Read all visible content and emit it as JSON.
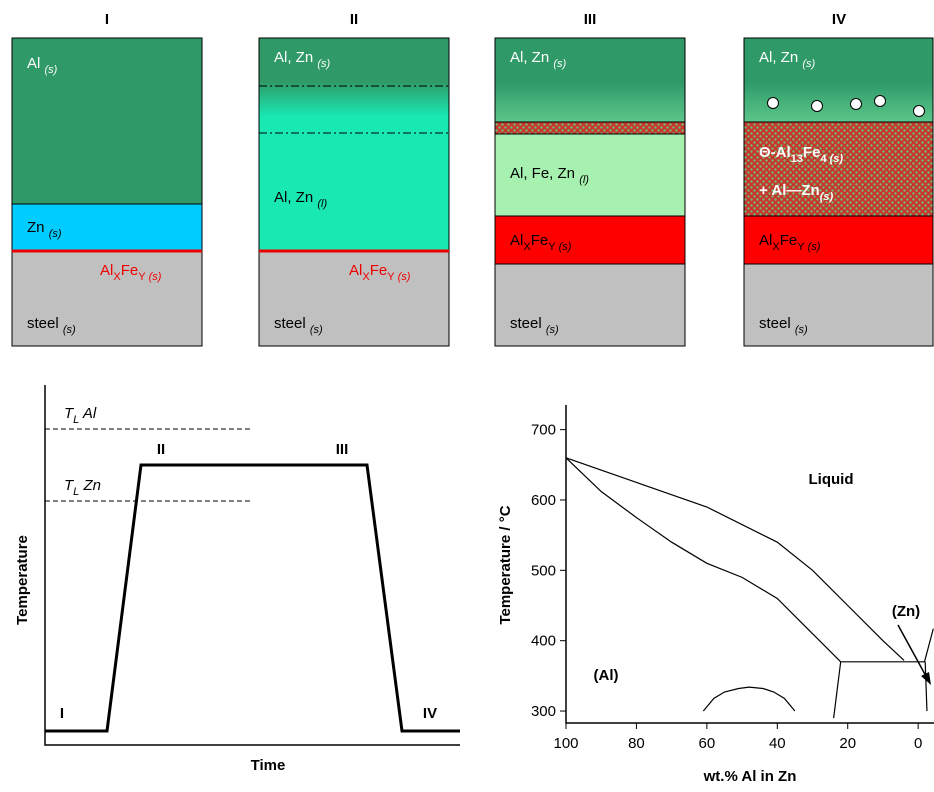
{
  "panels": [
    {
      "title": "I",
      "labels": [
        [
          {
            "text": "Al "
          },
          {
            "text": "(s)",
            "sub": true,
            "italic": true
          }
        ],
        [
          {
            "text": "Zn "
          },
          {
            "text": "(s)",
            "sub": true,
            "italic": true
          }
        ],
        [
          {
            "text": "Al"
          },
          {
            "text": "X",
            "sub": true
          },
          {
            "text": "Fe"
          },
          {
            "text": "Y",
            "sub": true
          },
          {
            "text": " (s)",
            "sub": true,
            "italic": true
          }
        ],
        [
          {
            "text": "steel "
          },
          {
            "text": "(s)",
            "sub": true,
            "italic": true
          }
        ]
      ]
    },
    {
      "title": "II",
      "labels": [
        [
          {
            "text": "Al, Zn "
          },
          {
            "text": "(s)",
            "sub": true,
            "italic": true
          }
        ],
        [
          {
            "text": "Al, Zn "
          },
          {
            "text": "(l)",
            "sub": true,
            "italic": true
          }
        ],
        [
          {
            "text": "Al"
          },
          {
            "text": "X",
            "sub": true
          },
          {
            "text": "Fe"
          },
          {
            "text": "Y",
            "sub": true
          },
          {
            "text": " (s)",
            "sub": true,
            "italic": true
          }
        ],
        [
          {
            "text": "steel "
          },
          {
            "text": "(s)",
            "sub": true,
            "italic": true
          }
        ]
      ]
    },
    {
      "title": "III",
      "labels": [
        [
          {
            "text": "Al, Zn "
          },
          {
            "text": "(s)",
            "sub": true,
            "italic": true
          }
        ],
        [
          {
            "text": "Al, Fe, Zn "
          },
          {
            "text": "(l)",
            "sub": true,
            "italic": true
          }
        ],
        [
          {
            "text": "Al"
          },
          {
            "text": "X",
            "sub": true
          },
          {
            "text": "Fe"
          },
          {
            "text": "Y",
            "sub": true
          },
          {
            "text": " (s)",
            "sub": true,
            "italic": true
          }
        ],
        [
          {
            "text": "steel "
          },
          {
            "text": "(s)",
            "sub": true,
            "italic": true
          }
        ]
      ]
    },
    {
      "title": "IV",
      "labels": [
        [
          {
            "text": "Al, Zn "
          },
          {
            "text": "(s)",
            "sub": true,
            "italic": true
          }
        ],
        [
          {
            "text": "Θ-Al"
          },
          {
            "text": "13",
            "sub": true
          },
          {
            "text": "Fe"
          },
          {
            "text": "4",
            "sub": true
          },
          {
            "text": " (s)",
            "sub": true,
            "italic": true
          }
        ],
        [
          {
            "text": "+ Al—Zn"
          },
          {
            "text": "(s)",
            "sub": true,
            "italic": true
          }
        ],
        [
          {
            "text": "Al"
          },
          {
            "text": "X",
            "sub": true
          },
          {
            "text": "Fe"
          },
          {
            "text": "Y",
            "sub": true
          },
          {
            "text": " (s)",
            "sub": true,
            "italic": true
          }
        ],
        [
          {
            "text": "steel "
          },
          {
            "text": "(s)",
            "sub": true,
            "italic": true
          }
        ]
      ]
    }
  ],
  "profile": {
    "stages": [
      "I",
      "II",
      "III",
      "IV"
    ],
    "x_label": "Time",
    "y_label": "Temperature",
    "levels": [
      [
        {
          "text": "T",
          "italic": true
        },
        {
          "text": "L",
          "sub": true,
          "italic": true
        },
        {
          "text": " Al",
          "italic": true
        }
      ],
      [
        {
          "text": "T",
          "italic": true
        },
        {
          "text": "L",
          "sub": true,
          "italic": true
        },
        {
          "text": " Zn",
          "italic": true
        }
      ]
    ]
  },
  "chart_data": {
    "type": "line",
    "y_label": "Temperature / °C",
    "x_label": "wt.% Al in Zn",
    "annotations": [
      "Liquid",
      "(Zn)",
      "(Al)"
    ],
    "xlim": [
      100,
      -4.5
    ],
    "ylim": [
      283,
      735
    ],
    "xticks": [
      100,
      80,
      60,
      40,
      20,
      0
    ],
    "yticks": [
      300,
      400,
      500,
      600,
      700
    ],
    "color": "#000000",
    "series": [
      {
        "x": [
          100,
          80,
          60,
          40,
          30,
          20,
          10,
          4
        ],
        "values": [
          660,
          625,
          590,
          540,
          500,
          450,
          400,
          372
        ]
      },
      {
        "x": [
          100,
          90,
          80,
          70,
          60,
          50,
          40,
          30,
          22
        ],
        "values": [
          660,
          612,
          575,
          540,
          510,
          490,
          460,
          410,
          370
        ]
      },
      {
        "x": [
          22,
          -2
        ],
        "values": [
          370,
          370
        ]
      },
      {
        "x": [
          22,
          24
        ],
        "values": [
          370,
          290
        ]
      },
      {
        "x": [
          61,
          58,
          55,
          51,
          48,
          44,
          41,
          38,
          35
        ],
        "values": [
          300,
          318,
          327,
          332,
          334,
          332,
          327,
          318,
          300
        ]
      },
      {
        "x": [
          -2,
          -2.5
        ],
        "values": [
          370,
          300
        ]
      },
      {
        "x": [
          -4.3,
          -1.8
        ],
        "values": [
          417,
          370
        ]
      }
    ]
  }
}
